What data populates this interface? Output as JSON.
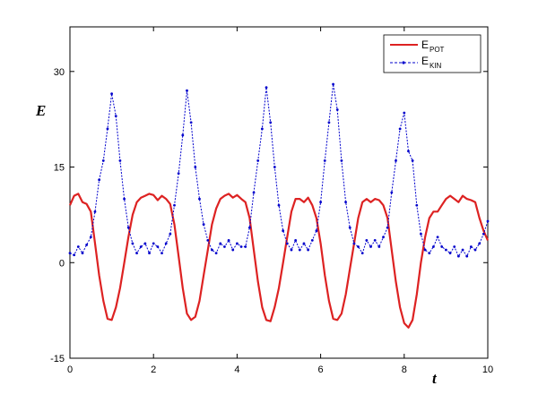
{
  "chart_data": {
    "type": "line",
    "xlabel": "t",
    "ylabel": "E",
    "xlim": [
      0,
      10
    ],
    "ylim": [
      -15,
      37
    ],
    "xticks": [
      0,
      2,
      4,
      6,
      8,
      10
    ],
    "yticks": [
      -15,
      0,
      15,
      30
    ],
    "grid": false,
    "legend_position": "top-right",
    "series": [
      {
        "name_main": "E",
        "name_sub": "POT",
        "color": "#dd2222",
        "style": "solid",
        "x": [
          0,
          0.1,
          0.2,
          0.3,
          0.4,
          0.5,
          0.6,
          0.7,
          0.8,
          0.9,
          1.0,
          1.1,
          1.2,
          1.3,
          1.4,
          1.5,
          1.6,
          1.7,
          1.8,
          1.9,
          2.0,
          2.1,
          2.2,
          2.3,
          2.4,
          2.5,
          2.6,
          2.7,
          2.8,
          2.9,
          3.0,
          3.1,
          3.2,
          3.3,
          3.4,
          3.5,
          3.6,
          3.7,
          3.8,
          3.9,
          4.0,
          4.1,
          4.2,
          4.3,
          4.4,
          4.5,
          4.6,
          4.7,
          4.8,
          4.9,
          5.0,
          5.1,
          5.2,
          5.3,
          5.4,
          5.5,
          5.6,
          5.7,
          5.8,
          5.9,
          6.0,
          6.1,
          6.2,
          6.3,
          6.4,
          6.5,
          6.6,
          6.7,
          6.8,
          6.9,
          7.0,
          7.1,
          7.2,
          7.3,
          7.4,
          7.5,
          7.6,
          7.7,
          7.8,
          7.9,
          8.0,
          8.1,
          8.2,
          8.3,
          8.4,
          8.5,
          8.6,
          8.7,
          8.8,
          8.9,
          9.0,
          9.1,
          9.2,
          9.3,
          9.4,
          9.5,
          9.6,
          9.7,
          9.8,
          9.9,
          10.0
        ],
        "values": [
          9,
          10.5,
          10.8,
          9.5,
          9.2,
          8,
          3,
          -2,
          -6,
          -8.8,
          -9,
          -7,
          -4,
          0,
          4,
          7.5,
          9.5,
          10.2,
          10.5,
          10.8,
          10.6,
          9.8,
          10.5,
          10,
          9.2,
          6,
          1,
          -4,
          -8,
          -9,
          -8.5,
          -6,
          -2,
          2,
          6,
          8.5,
          10,
          10.5,
          10.8,
          10.2,
          10.6,
          10,
          9.5,
          7,
          2,
          -3,
          -7,
          -9,
          -9.2,
          -7,
          -4,
          0,
          4,
          8,
          10,
          10,
          9.5,
          10.2,
          9,
          7,
          3,
          -2,
          -6,
          -8.8,
          -9,
          -8,
          -5,
          -1,
          3,
          7,
          9.5,
          10,
          9.5,
          10,
          9.8,
          9,
          7,
          2,
          -3,
          -7,
          -9.5,
          -10.2,
          -9,
          -5,
          0,
          4,
          7,
          8,
          8,
          9,
          10,
          10.5,
          10,
          9.5,
          10.5,
          10,
          9.8,
          9.5,
          7,
          5,
          3.5
        ]
      },
      {
        "name_main": "E",
        "name_sub": "KIN",
        "color": "#0000cc",
        "style": "dotted-line-with-dots",
        "x": [
          0,
          0.1,
          0.2,
          0.3,
          0.4,
          0.5,
          0.6,
          0.7,
          0.8,
          0.9,
          1.0,
          1.1,
          1.2,
          1.3,
          1.4,
          1.5,
          1.6,
          1.7,
          1.8,
          1.9,
          2.0,
          2.1,
          2.2,
          2.3,
          2.4,
          2.5,
          2.6,
          2.7,
          2.8,
          2.9,
          3.0,
          3.1,
          3.2,
          3.3,
          3.4,
          3.5,
          3.6,
          3.7,
          3.8,
          3.9,
          4.0,
          4.1,
          4.2,
          4.3,
          4.4,
          4.5,
          4.6,
          4.7,
          4.8,
          4.9,
          5.0,
          5.1,
          5.2,
          5.3,
          5.4,
          5.5,
          5.6,
          5.7,
          5.8,
          5.9,
          6.0,
          6.1,
          6.2,
          6.3,
          6.4,
          6.5,
          6.6,
          6.7,
          6.8,
          6.9,
          7.0,
          7.1,
          7.2,
          7.3,
          7.4,
          7.5,
          7.6,
          7.7,
          7.8,
          7.9,
          8.0,
          8.1,
          8.2,
          8.3,
          8.4,
          8.5,
          8.6,
          8.7,
          8.8,
          8.9,
          9.0,
          9.1,
          9.2,
          9.3,
          9.4,
          9.5,
          9.6,
          9.7,
          9.8,
          9.9,
          10.0
        ],
        "values": [
          1.5,
          1.2,
          2.5,
          1.5,
          2.8,
          4,
          8,
          13,
          16,
          21,
          26.5,
          23,
          16,
          10,
          5.5,
          3,
          1.5,
          2.5,
          3,
          1.5,
          3,
          2.5,
          1.5,
          3,
          4.5,
          9,
          14,
          20,
          27,
          22,
          15,
          10,
          6,
          3.5,
          2,
          1.5,
          3,
          2.5,
          3.5,
          2,
          3,
          2.5,
          2.5,
          5.5,
          11,
          16,
          21,
          27.5,
          22,
          15,
          9,
          5,
          3,
          2,
          3.5,
          2,
          3,
          2,
          3.5,
          5,
          9.5,
          16,
          22,
          28,
          24,
          16,
          9.5,
          5.5,
          3,
          2.5,
          1.5,
          3.5,
          2.5,
          3.5,
          2.5,
          4,
          5.5,
          11,
          16,
          21,
          23.5,
          17.5,
          16,
          9,
          4.5,
          2,
          1.5,
          2.5,
          4,
          2.5,
          2,
          1.5,
          2.5,
          1,
          2,
          1,
          2.5,
          2,
          3,
          4.5,
          6.5
        ]
      }
    ]
  }
}
